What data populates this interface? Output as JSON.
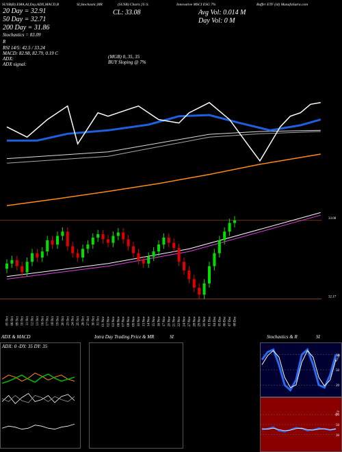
{
  "header": {
    "parts": [
      "SUSB(B) EMA,AI,Day,ADX,MACD,B",
      "SI,Stochastic,MR",
      "(SUSB) Charts [U.S.",
      "Innovative MSCI ESG 7%",
      "Buffer ETF (id) MunafaSutra.com"
    ]
  },
  "info": {
    "left": [
      "20 Day = 32.91",
      "50 Day = 32.71",
      "200 Day = 31.86",
      "Stochastics = 83.09",
      "R",
      "RSI 14/5: 42.5 / 33.24",
      "MACD: 82.98, 82.79, 0.19 C",
      "ADX:",
      "ADX  signal:"
    ],
    "middle": [
      "(MGB) 0, 35, 35",
      "BUY Sloping @ 7%"
    ],
    "close": "CL: 33.08",
    "avg_vol": "Avg Vol: 0.014  M",
    "day_vol": "Day Vol: 0  M"
  },
  "chart_data": [
    {
      "type": "candlestick",
      "categories": [
        "05 Oct",
        "06 Oct",
        "09 Oct",
        "10 Oct",
        "11 Oct",
        "12 Oct",
        "13 Oct",
        "16 Oct",
        "17 Oct",
        "18 Oct",
        "19 Oct",
        "20 Oct",
        "23 Oct",
        "24 Oct",
        "25 Oct",
        "26 Oct",
        "27 Oct",
        "30 Oct",
        "31 Oct",
        "01 Nov",
        "02 Nov",
        "03 Nov",
        "06 Nov",
        "07 Nov",
        "08 Nov",
        "09 Nov",
        "10 Nov",
        "13 Nov",
        "14 Nov",
        "15 Nov",
        "16 Nov",
        "17 Nov",
        "20 Nov",
        "21 Nov",
        "22 Nov",
        "24 Nov",
        "27 Nov",
        "28 Nov",
        "29 Nov",
        "30 Nov",
        "01 Dec",
        "04 Dec",
        "05 Dec",
        "06 Dec",
        "07 Dec",
        "08 Dec"
      ],
      "open": [
        32.52,
        32.58,
        32.62,
        32.55,
        32.48,
        32.6,
        32.7,
        32.65,
        32.72,
        32.85,
        32.8,
        32.9,
        32.95,
        32.78,
        32.7,
        32.65,
        32.75,
        32.8,
        32.88,
        32.92,
        32.86,
        32.82,
        32.9,
        32.94,
        32.86,
        32.78,
        32.7,
        32.62,
        32.58,
        32.66,
        32.72,
        32.8,
        32.88,
        32.82,
        32.76,
        32.6,
        32.5,
        32.4,
        32.3,
        32.22,
        32.35,
        32.55,
        32.7,
        32.85,
        32.95,
        33.05
      ],
      "high": [
        32.63,
        32.67,
        32.67,
        32.6,
        32.65,
        32.75,
        32.75,
        32.77,
        32.9,
        32.9,
        32.95,
        33.0,
        33.0,
        32.83,
        32.75,
        32.8,
        32.85,
        32.93,
        32.97,
        32.97,
        32.91,
        32.95,
        32.99,
        32.99,
        32.91,
        32.83,
        32.75,
        32.67,
        32.71,
        32.77,
        32.85,
        32.93,
        32.93,
        32.87,
        32.81,
        32.65,
        32.55,
        32.45,
        32.35,
        32.4,
        32.6,
        32.75,
        32.9,
        33.0,
        33.1,
        33.13
      ],
      "low": [
        32.47,
        32.53,
        32.5,
        32.43,
        32.43,
        32.55,
        32.6,
        32.6,
        32.67,
        32.75,
        32.75,
        32.85,
        32.73,
        32.65,
        32.6,
        32.6,
        32.7,
        32.75,
        32.83,
        32.81,
        32.77,
        32.77,
        32.85,
        32.81,
        32.73,
        32.65,
        32.57,
        32.53,
        32.53,
        32.61,
        32.67,
        32.75,
        32.77,
        32.71,
        32.55,
        32.45,
        32.35,
        32.25,
        32.17,
        32.17,
        32.3,
        32.5,
        32.65,
        32.8,
        32.9,
        33.0
      ],
      "close": [
        32.58,
        32.62,
        32.55,
        32.48,
        32.6,
        32.7,
        32.65,
        32.72,
        32.85,
        32.8,
        32.9,
        32.95,
        32.78,
        32.7,
        32.65,
        32.75,
        32.8,
        32.88,
        32.92,
        32.86,
        32.82,
        32.9,
        32.94,
        32.86,
        32.78,
        32.7,
        32.62,
        32.58,
        32.66,
        32.72,
        32.8,
        32.88,
        32.82,
        32.76,
        32.6,
        32.5,
        32.4,
        32.3,
        32.22,
        32.35,
        32.55,
        32.7,
        32.85,
        32.95,
        33.05,
        33.08
      ],
      "up_color": "#00e000",
      "down_color": "#e00000",
      "ylim": [
        32.0,
        33.3
      ],
      "yticks": [
        32.17,
        33.08
      ],
      "grid_color": "#8a4a1a",
      "overlays": [
        {
          "color": "#e040e0",
          "x": [
            0,
            20,
            36,
            62
          ],
          "values": [
            32.4,
            32.55,
            32.72,
            33.14
          ]
        },
        {
          "color": "#ffffff",
          "x": [
            0,
            20,
            36,
            62
          ],
          "values": [
            32.43,
            32.58,
            32.75,
            33.17
          ]
        }
      ]
    },
    {
      "type": "line",
      "ylim": [
        31.3,
        33.6
      ],
      "series": [
        {
          "color": "#ff8c1a",
          "width": 1.5,
          "x": [
            0,
            10,
            20,
            30,
            40,
            50,
            62
          ],
          "values": [
            31.54,
            31.66,
            31.79,
            31.93,
            32.09,
            32.27,
            32.45
          ]
        },
        {
          "color": "#aaaaaa",
          "width": 1,
          "x": [
            0,
            20,
            40,
            50,
            62
          ],
          "values": [
            32.29,
            32.41,
            32.75,
            32.81,
            32.85
          ]
        },
        {
          "color": "#dddddd",
          "width": 1,
          "x": [
            0,
            20,
            40,
            50,
            62
          ],
          "values": [
            32.37,
            32.49,
            32.8,
            32.85,
            32.87
          ]
        },
        {
          "color": "#1f5fe0",
          "width": 3,
          "x": [
            0,
            6,
            12,
            20,
            28,
            34,
            40,
            46,
            52,
            58,
            62
          ],
          "values": [
            32.69,
            32.69,
            32.81,
            32.87,
            32.97,
            33.12,
            33.14,
            33.0,
            32.87,
            32.96,
            33.06
          ]
        },
        {
          "color": "#ffffff",
          "width": 1.5,
          "x": [
            0,
            4,
            8,
            12,
            14,
            18,
            20,
            24,
            26,
            30,
            34,
            36,
            40,
            44,
            48,
            50,
            52,
            54,
            56,
            58,
            60,
            62
          ],
          "values": [
            32.93,
            32.75,
            33.06,
            33.3,
            32.63,
            33.18,
            33.12,
            33.24,
            33.3,
            33.06,
            33.0,
            33.18,
            33.36,
            33.06,
            32.57,
            32.33,
            32.63,
            32.93,
            33.12,
            33.18,
            33.33,
            33.36
          ]
        }
      ]
    },
    {
      "type": "line",
      "title": "ADX & MACD",
      "label": "ADX: 0  -DY: 35  DY: 35",
      "ylim": [
        0,
        100
      ],
      "series": [
        {
          "color": "#ff8c1a",
          "width": 1,
          "x": [
            0,
            1,
            2,
            3,
            4,
            5,
            6,
            7,
            8,
            9,
            10,
            11
          ],
          "values": [
            66,
            70,
            68,
            64,
            67,
            72,
            69,
            65,
            68,
            70,
            66,
            64
          ]
        },
        {
          "color": "#00c000",
          "width": 1.5,
          "x": [
            0,
            1,
            2,
            3,
            4,
            5,
            6,
            7,
            8,
            9,
            10,
            11
          ],
          "values": [
            62,
            64,
            67,
            70,
            66,
            63,
            68,
            71,
            67,
            64,
            66,
            68
          ]
        },
        {
          "color": "#ffffff",
          "width": 0.8,
          "x": [
            0,
            1,
            2,
            3,
            4,
            5,
            6,
            7,
            8,
            9,
            10,
            11
          ],
          "values": [
            44,
            50,
            42,
            48,
            52,
            44,
            46,
            50,
            43,
            49,
            51,
            45
          ]
        },
        {
          "color": "#999999",
          "width": 0.8,
          "x": [
            0,
            1,
            2,
            3,
            4,
            5,
            6,
            7,
            8,
            9,
            10,
            11
          ],
          "values": [
            47,
            44,
            50,
            45,
            43,
            50,
            48,
            44,
            49,
            46,
            44,
            49
          ]
        },
        {
          "color": "#ffffff",
          "width": 0.8,
          "x": [
            0,
            1,
            2,
            3,
            4,
            5,
            6,
            7,
            8,
            9,
            10,
            11
          ],
          "values": [
            18,
            20,
            19,
            17,
            18,
            21,
            20,
            18,
            17,
            19,
            20,
            22
          ]
        }
      ]
    },
    {
      "type": "empty",
      "title": "Intra Day Trading Price & MR",
      "subtitle": "SI"
    },
    {
      "type": "line",
      "title": "Stochastics & R",
      "value_label": "83.09",
      "ylim": [
        0,
        100
      ],
      "yticks": [
        20,
        50,
        80
      ],
      "background": "#000033",
      "series": [
        {
          "color": "#2a6af0",
          "width": 3,
          "x": [
            0,
            1,
            2,
            3,
            4,
            5,
            6,
            7,
            8,
            9,
            10,
            11,
            12,
            13
          ],
          "values": [
            70,
            85,
            90,
            60,
            20,
            10,
            30,
            80,
            90,
            60,
            20,
            15,
            40,
            80
          ]
        },
        {
          "color": "#ffffff",
          "width": 1,
          "x": [
            0,
            1,
            2,
            3,
            4,
            5,
            6,
            7,
            8,
            9,
            10,
            11,
            12,
            13
          ],
          "values": [
            60,
            78,
            88,
            75,
            35,
            15,
            20,
            65,
            88,
            75,
            35,
            18,
            30,
            70
          ]
        }
      ]
    },
    {
      "type": "line",
      "title": "SI",
      "value_label": "42.5",
      "ylim": [
        0,
        100
      ],
      "yticks": [
        30,
        50,
        70
      ],
      "background": "#8a0000",
      "series": [
        {
          "color": "#2a6af0",
          "width": 2,
          "x": [
            0,
            1,
            2,
            3,
            4,
            5,
            6,
            7,
            8,
            9,
            10,
            11,
            12,
            13
          ],
          "values": [
            40,
            42,
            45,
            38,
            36,
            40,
            44,
            42,
            38,
            40,
            43,
            41,
            39,
            42
          ]
        },
        {
          "color": "#ffffff",
          "width": 0.8,
          "x": [
            0,
            1,
            2,
            3,
            4,
            5,
            6,
            7,
            8,
            9,
            10,
            11,
            12,
            13
          ],
          "values": [
            42,
            41,
            43,
            40,
            38,
            39,
            42,
            43,
            40,
            39,
            41,
            42,
            40,
            41
          ]
        }
      ]
    }
  ]
}
